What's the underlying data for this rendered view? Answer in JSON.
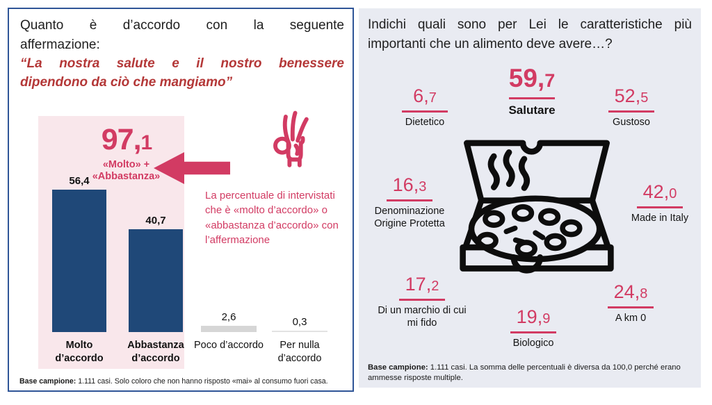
{
  "colors": {
    "accent_pink": "#d23b63",
    "quote_red": "#b43838",
    "bar_navy": "#1f4878",
    "pink_box_bg": "#f9e7eb",
    "right_panel_bg": "#e9ebf2",
    "left_border": "#2f5597"
  },
  "chart_data": [
    {
      "type": "bar",
      "title": "Quanto è d’accordo con la seguente affermazione: “La nostra salute e il nostro benessere dipendono da ciò che mangiamo”",
      "categories": [
        "Molto d’accordo",
        "Abbastanza d’accordo",
        "Poco d’accordo",
        "Per nulla d’accordo"
      ],
      "values": [
        56.4,
        40.7,
        2.6,
        0.3
      ],
      "ylim": [
        0,
        60
      ],
      "grid": false,
      "bar_colors": [
        "#1f4878",
        "#1f4878",
        "#d6d6d6",
        "#e2e2e2"
      ],
      "annotation": {
        "value": 97.1,
        "label": "«Molto» + «Abbastanza»",
        "note": "La percentuale di intervistati che è «molto d’accordo» o «abbastanza d’accordo» con l’affermazione"
      },
      "footnote": "Base campione: 1.111 casi. Solo coloro che non hanno risposto «mai» al consumo fuori casa."
    },
    {
      "type": "table",
      "title": "Indichi quali sono per Lei le caratteristiche più importanti che un alimento deve avere…?",
      "categories": [
        "Salutare",
        "Dietetico",
        "Gustoso",
        "Denominazione Origine Protetta",
        "Made in Italy",
        "Di un marchio di cui mi fido",
        "Biologico",
        "A km 0"
      ],
      "values": [
        59.7,
        6.7,
        52.5,
        16.3,
        42.0,
        17.2,
        19.9,
        24.8
      ],
      "footnote": "Base campione: 1.111 casi. La somma delle percentuali è diversa da 100,0 perché erano ammesse risposte multiple."
    }
  ],
  "left_panel": {
    "title_line1": "Quanto è d’accordo con la seguente",
    "title_line2": "affermazione:",
    "quote_line1": "“La nostra salute e il nostro benessere",
    "quote_line2": "dipendono da ciò che mangiamo”",
    "highlight": {
      "value_main": "97,",
      "value_dec": "1",
      "sub_line1": "«Molto» +",
      "sub_line2": "«Abbastanza»"
    },
    "note": "La percentuale di intervistati che è «molto d’accordo» o «abbastanza d’accordo» con l’affermazione",
    "bars": [
      {
        "value_label": "56,4",
        "category": "Molto d’accordo"
      },
      {
        "value_label": "40,7",
        "category": "Abbastanza d’accordo"
      },
      {
        "value_label": "2,6",
        "category": "Poco d’accordo"
      },
      {
        "value_label": "0,3",
        "category": "Per nulla d’accordo"
      }
    ],
    "footer": {
      "bold": "Base campione:",
      "text": " 1.111 casi. Solo coloro che non hanno risposto «mai» al consumo fuori casa."
    }
  },
  "right_panel": {
    "title_line1": "Indichi quali sono per Lei le caratteristiche più",
    "title_line2": "importanti che un alimento deve avere…?",
    "stats": [
      {
        "value_main": "59,",
        "value_dec": "7",
        "label": "Salutare"
      },
      {
        "value_main": "6,",
        "value_dec": "7",
        "label": "Dietetico"
      },
      {
        "value_main": "52,",
        "value_dec": "5",
        "label": "Gustoso"
      },
      {
        "value_main": "16,",
        "value_dec": "3",
        "label": "Denominazione Origine Protetta"
      },
      {
        "value_main": "42,",
        "value_dec": "0",
        "label": "Made in Italy"
      },
      {
        "value_main": "17,",
        "value_dec": "2",
        "label": "Di un marchio di cui mi fido"
      },
      {
        "value_main": "19,",
        "value_dec": "9",
        "label": "Biologico"
      },
      {
        "value_main": "24,",
        "value_dec": "8",
        "label": "A km 0"
      }
    ],
    "footer": {
      "bold": "Base campione:",
      "text": " 1.111 casi. La somma delle percentuali è diversa da 100,0 perché erano ammesse risposte multiple."
    }
  }
}
